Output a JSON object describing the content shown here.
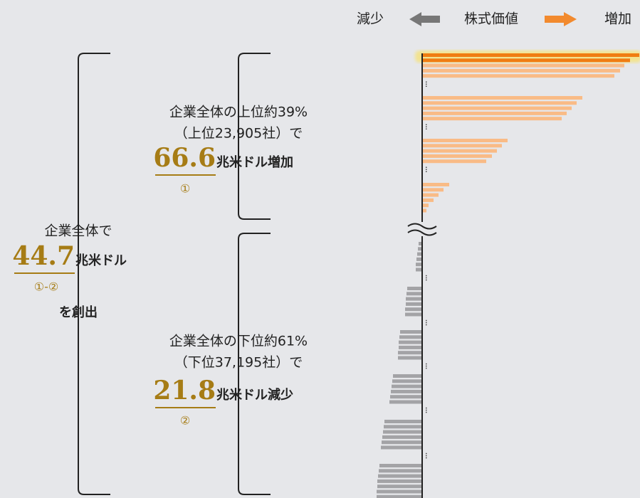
{
  "legend": {
    "decrease": "減少",
    "center": "株式価値",
    "increase": "増加"
  },
  "top": {
    "line1": "企業全体の上位約39%",
    "line2": "（上位23,905社）で",
    "amount": "66.6",
    "unit": "兆米ドル増加",
    "marker": "①"
  },
  "total": {
    "line1": "企業全体で",
    "amount": "44.7",
    "unit": "兆米ドル",
    "marker": "①-②",
    "line2": "を創出"
  },
  "bottom": {
    "line1": "企業全体の下位約61%",
    "line2": "（下位37,195社）で",
    "amount": "21.8",
    "unit": "兆米ドル減少",
    "marker": "②"
  }
}
